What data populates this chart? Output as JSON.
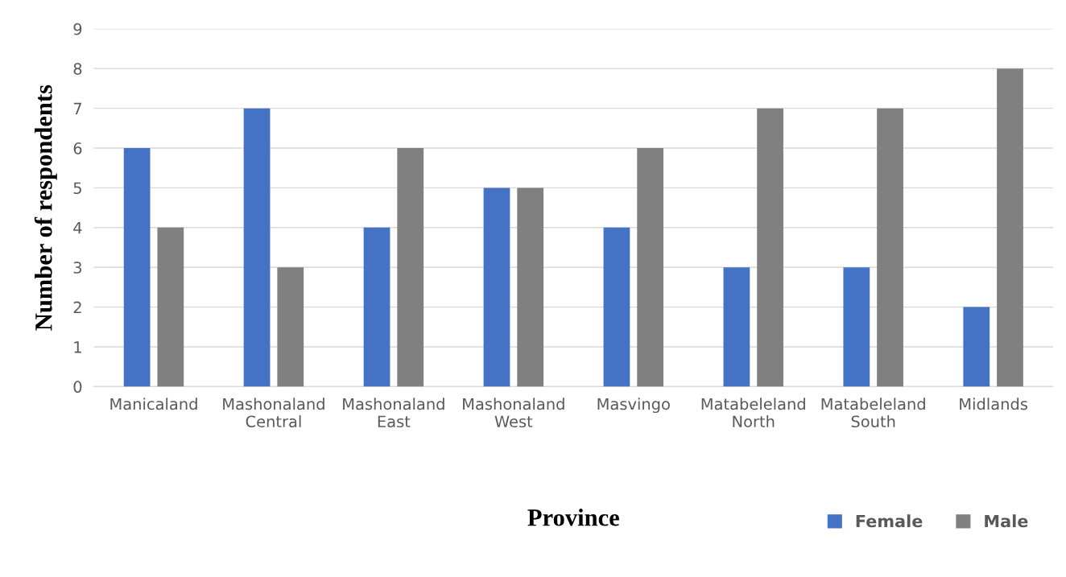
{
  "chart_data": {
    "type": "bar",
    "xlabel": "Province",
    "ylabel": "Number of respondents",
    "categories": [
      "Manicaland",
      "Mashonaland\nCentral",
      "Mashonaland\nEast",
      "Mashonaland\nWest",
      "Masvingo",
      "Matabeleland\nNorth",
      "Matabeleland\nSouth",
      "Midlands"
    ],
    "series": [
      {
        "name": "Female",
        "color": "#4472c4",
        "values": [
          6,
          7,
          4,
          5,
          4,
          3,
          3,
          2
        ]
      },
      {
        "name": "Male",
        "color": "#808080",
        "values": [
          4,
          3,
          6,
          5,
          6,
          7,
          7,
          8
        ]
      }
    ],
    "ylim": [
      0,
      9
    ],
    "yticks": [
      0,
      1,
      2,
      3,
      4,
      5,
      6,
      7,
      8,
      9
    ],
    "grid": "y",
    "legend": "bottom right"
  }
}
